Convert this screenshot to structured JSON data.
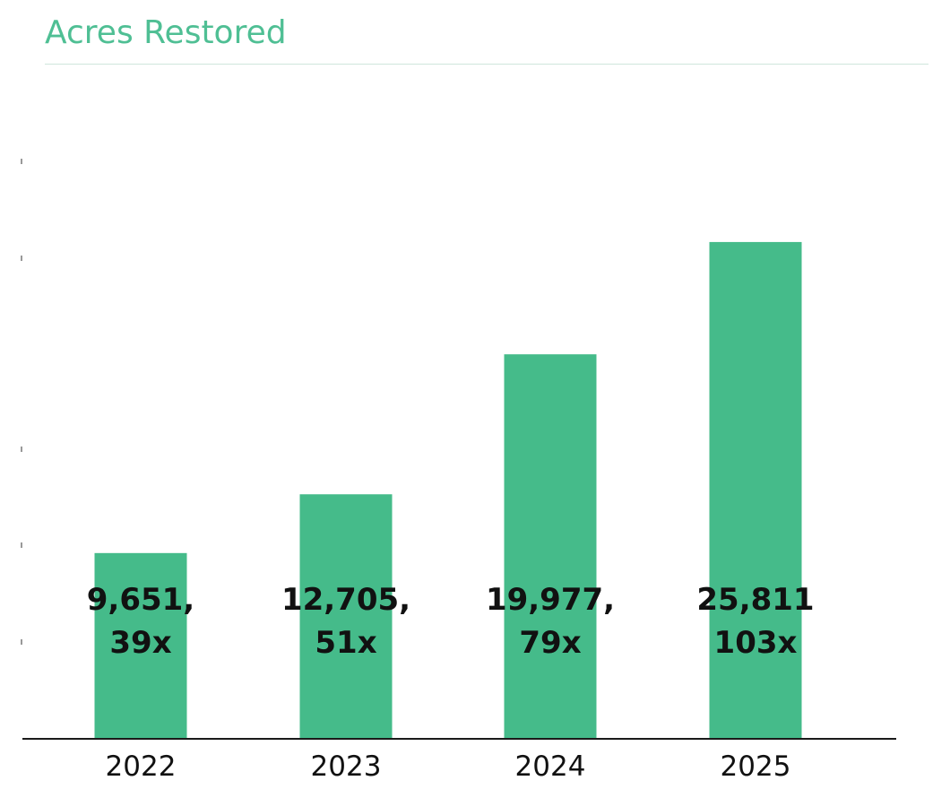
{
  "chart_data": {
    "type": "bar",
    "title": "Acres Restored",
    "categories": [
      "2022",
      "2023",
      "2024",
      "2025"
    ],
    "values": [
      9651,
      12705,
      19977,
      25811
    ],
    "data_labels": [
      [
        "9,651,",
        "39x"
      ],
      [
        "12,705,",
        "51x"
      ],
      [
        "19,977,",
        "79x"
      ],
      [
        "25,811",
        "103x"
      ]
    ],
    "xlabel": "",
    "ylabel": "",
    "ylim": [
      0,
      30000
    ],
    "grid": false,
    "legend": "none",
    "colors": {
      "bar": "#45bb8a",
      "title": "#4fbf94",
      "axis": "#1a1a1a",
      "tick": "#777777"
    }
  }
}
